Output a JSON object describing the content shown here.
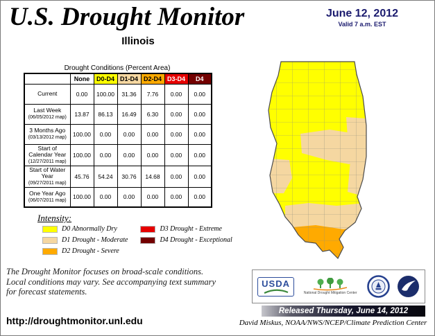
{
  "header": {
    "title": "U.S. Drought Monitor",
    "state": "Illinois",
    "date": "June 12, 2012",
    "valid": "Valid 7 a.m. EST"
  },
  "table": {
    "caption": "Drought Conditions (Percent Area)",
    "columns": [
      {
        "label": "None",
        "bg": "#FFFFFF",
        "fg": "#000000"
      },
      {
        "label": "D0-D4",
        "bg": "#FFFF00",
        "fg": "#000000"
      },
      {
        "label": "D1-D4",
        "bg": "#F5D7A1",
        "fg": "#000000"
      },
      {
        "label": "D2-D4",
        "bg": "#FFAA00",
        "fg": "#000000"
      },
      {
        "label": "D3-D4",
        "bg": "#E60000",
        "fg": "#FFFFFF"
      },
      {
        "label": "D4",
        "bg": "#730000",
        "fg": "#FFFFFF"
      }
    ],
    "rows": [
      {
        "label": "Current",
        "sub": "",
        "values": [
          "0.00",
          "100.00",
          "31.36",
          "7.76",
          "0.00",
          "0.00"
        ]
      },
      {
        "label": "Last Week",
        "sub": "(06/05/2012 map)",
        "values": [
          "13.87",
          "86.13",
          "16.49",
          "6.30",
          "0.00",
          "0.00"
        ]
      },
      {
        "label": "3 Months Ago",
        "sub": "(03/13/2012 map)",
        "values": [
          "100.00",
          "0.00",
          "0.00",
          "0.00",
          "0.00",
          "0.00"
        ]
      },
      {
        "label": "Start of Calendar Year",
        "sub": "(12/27/2011 map)",
        "values": [
          "100.00",
          "0.00",
          "0.00",
          "0.00",
          "0.00",
          "0.00"
        ]
      },
      {
        "label": "Start of Water Year",
        "sub": "(09/27/2011 map)",
        "values": [
          "45.76",
          "54.24",
          "30.76",
          "14.68",
          "0.00",
          "0.00"
        ]
      },
      {
        "label": "One Year Ago",
        "sub": "(06/07/2011 map)",
        "values": [
          "100.00",
          "0.00",
          "0.00",
          "0.00",
          "0.00",
          "0.00"
        ]
      }
    ]
  },
  "legend": {
    "title": "Intensity:",
    "items": [
      {
        "label": "D0 Abnormally Dry",
        "color": "#FFFF00"
      },
      {
        "label": "D1 Drought - Moderate",
        "color": "#F5D7A1"
      },
      {
        "label": "D2 Drought - Severe",
        "color": "#FFAA00"
      },
      {
        "label": "D3 Drought - Extreme",
        "color": "#E60000"
      },
      {
        "label": "D4 Drought - Exceptional",
        "color": "#730000"
      }
    ]
  },
  "notes": {
    "line1": "The Drought Monitor focuses on broad-scale conditions.",
    "line2": "Local conditions may vary. See accompanying text summary",
    "line3": "for forecast statements."
  },
  "logos": {
    "usda": "USDA",
    "ndmc": "National Drought Mitigation Center"
  },
  "footer": {
    "url": "http://droughtmonitor.unl.edu",
    "released": "Released Thursday, June 14, 2012",
    "author": "David Miskus, NOAA/NWS/NCEP/Climate Prediction Center"
  }
}
